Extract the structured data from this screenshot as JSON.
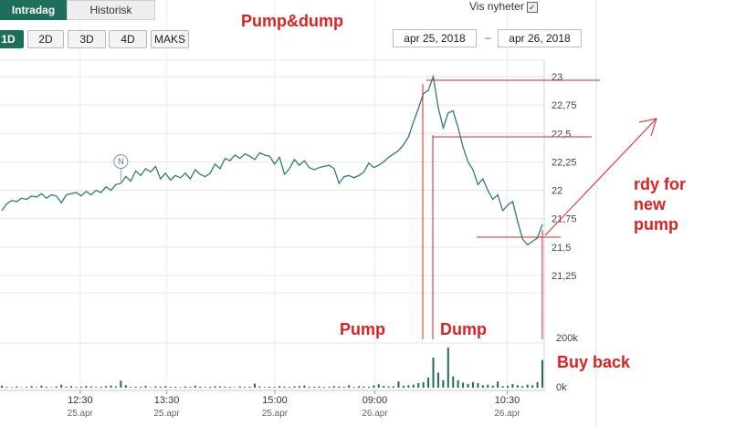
{
  "tabs": {
    "active": "Intradag",
    "inactive": "Historisk"
  },
  "range_buttons": [
    "1D",
    "2D",
    "3D",
    "4D",
    "MAKS"
  ],
  "range_active": "1D",
  "news": {
    "label": "Vis nyheter",
    "checked": true
  },
  "date_range": {
    "from": "apr 25, 2018",
    "separator": "–",
    "to": "apr 26, 2018"
  },
  "annotations": {
    "title": "Pump&dump",
    "pump": "Pump",
    "dump": "Dump",
    "buy_back": "Buy back",
    "rdy_line1": "rdy for",
    "rdy_line2": "new",
    "rdy_line3": "pump"
  },
  "news_marker": "N",
  "colors": {
    "line": "#2a7d77",
    "volume": "#1b6e5c",
    "annotation": "#e02020",
    "grid": "#e5e5e5",
    "accent": "#1e6e5c"
  },
  "chart_data": {
    "type": "line",
    "y_ticks": [
      "23",
      "22,75",
      "22,5",
      "22,25",
      "22",
      "21,75",
      "21,5",
      "21,25"
    ],
    "y_tick_values": [
      23,
      22.75,
      22.5,
      22.25,
      22,
      21.75,
      21.5,
      21.25
    ],
    "ylim": [
      21.1,
      23.05
    ],
    "volume_ticks": [
      "200k",
      "0k"
    ],
    "volume_tick_values": [
      200000,
      0
    ],
    "x_ticks": [
      {
        "time": "12:30",
        "date": "25.apr",
        "i": 0.145
      },
      {
        "time": "13:30",
        "date": "25.apr",
        "i": 0.305
      },
      {
        "time": "15:00",
        "date": "25.apr",
        "i": 0.505
      },
      {
        "time": "09:00",
        "date": "26.apr",
        "i": 0.69
      },
      {
        "time": "10:30",
        "date": "26.apr",
        "i": 0.935
      }
    ],
    "price": [
      21.82,
      21.88,
      21.91,
      21.9,
      21.93,
      21.92,
      21.95,
      21.94,
      21.97,
      21.93,
      21.96,
      21.95,
      21.89,
      21.96,
      21.97,
      21.98,
      21.95,
      21.99,
      21.96,
      22.0,
      21.98,
      22.03,
      22.0,
      22.05,
      22.06,
      22.12,
      22.08,
      22.17,
      22.13,
      22.19,
      22.16,
      22.21,
      22.1,
      22.15,
      22.09,
      22.13,
      22.11,
      22.15,
      22.1,
      22.18,
      22.14,
      22.12,
      22.15,
      22.23,
      22.19,
      22.28,
      22.26,
      22.31,
      22.28,
      22.32,
      22.3,
      22.27,
      22.33,
      22.31,
      22.3,
      22.23,
      22.29,
      22.14,
      22.19,
      22.27,
      22.22,
      22.26,
      22.2,
      22.18,
      22.2,
      22.21,
      22.22,
      22.19,
      22.06,
      22.12,
      22.13,
      22.11,
      22.13,
      22.16,
      22.24,
      22.2,
      22.22,
      22.25,
      22.29,
      22.32,
      22.35,
      22.4,
      22.47,
      22.6,
      22.72,
      22.85,
      22.88,
      23.0,
      22.73,
      22.55,
      22.68,
      22.7,
      22.55,
      22.38,
      22.25,
      22.18,
      22.05,
      22.1,
      22.0,
      21.92,
      21.96,
      21.82,
      21.87,
      21.9,
      21.73,
      21.57,
      21.52,
      21.55,
      21.58,
      21.7
    ],
    "volume": [
      8,
      3,
      2,
      5,
      1,
      3,
      6,
      2,
      8,
      4,
      2,
      5,
      12,
      4,
      6,
      3,
      4,
      7,
      5,
      3,
      4,
      6,
      9,
      5,
      28,
      10,
      3,
      4,
      3,
      7,
      2,
      5,
      4,
      6,
      3,
      4,
      2,
      5,
      3,
      8,
      4,
      3,
      4,
      6,
      5,
      4,
      3,
      2,
      5,
      3,
      4,
      16,
      5,
      3,
      4,
      3,
      6,
      4,
      3,
      5,
      6,
      9,
      4,
      4,
      5,
      3,
      4,
      6,
      5,
      4,
      10,
      3,
      6,
      5,
      4,
      9,
      14,
      7,
      5,
      6,
      25,
      8,
      10,
      12,
      18,
      22,
      40,
      120,
      60,
      30,
      160,
      45,
      30,
      20,
      15,
      22,
      18,
      10,
      12,
      8,
      25,
      6,
      8,
      14,
      10,
      6,
      12,
      10,
      22,
      110
    ]
  }
}
